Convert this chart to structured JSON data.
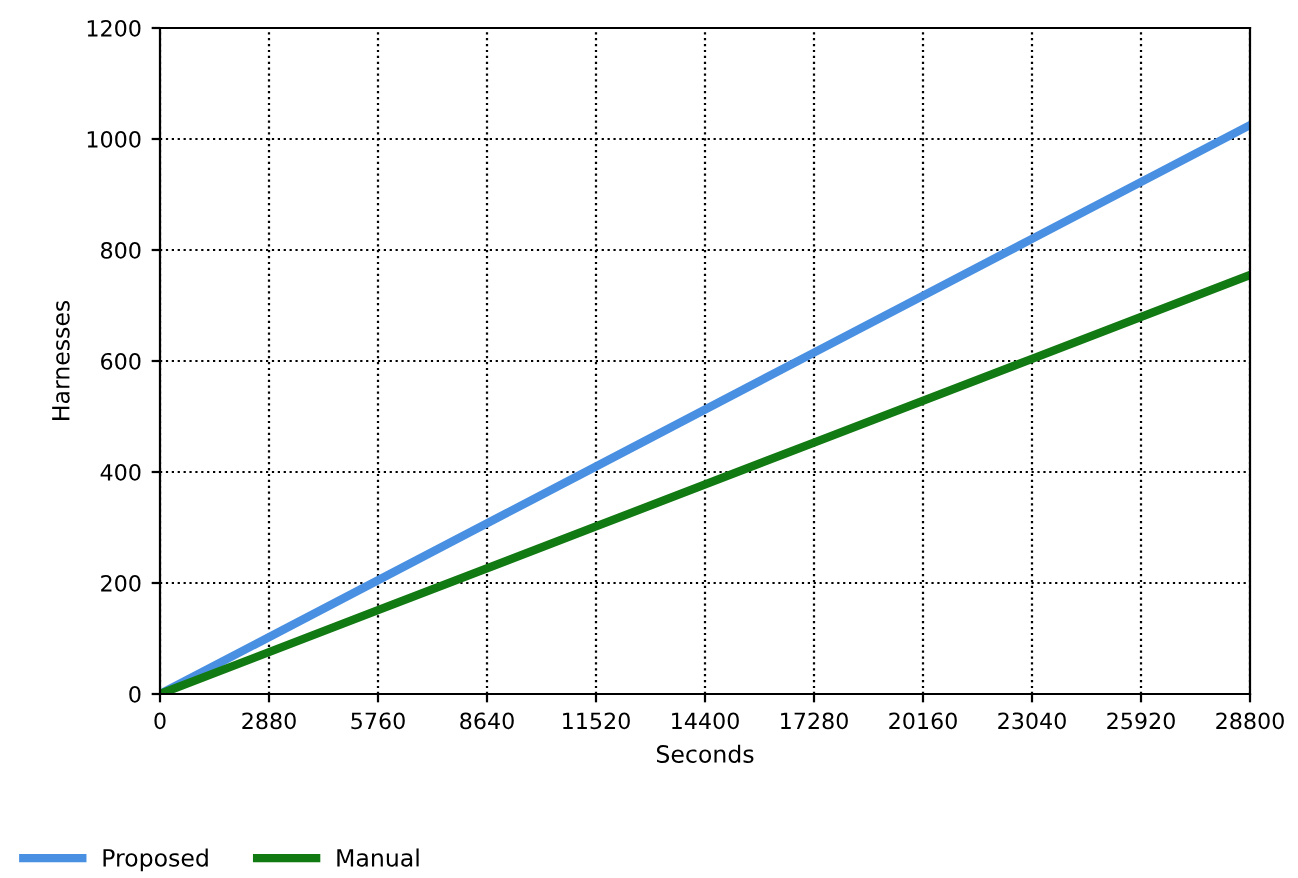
{
  "chart_data": {
    "type": "line",
    "xlabel": "Seconds",
    "ylabel": "Harnesses",
    "x": [
      0,
      5760,
      11520,
      17280,
      23040,
      28800
    ],
    "series": [
      {
        "name": "Proposed",
        "color": "#4a90e2",
        "values": [
          0,
          205,
          410,
          615,
          820,
          1025
        ]
      },
      {
        "name": "Manual",
        "color": "#127a12",
        "values": [
          0,
          151,
          302,
          453,
          604,
          755
        ]
      }
    ],
    "xlim": [
      0,
      28800
    ],
    "xticks": [
      0,
      2880,
      5760,
      8640,
      11520,
      14400,
      17280,
      20160,
      23040,
      25920,
      28800
    ],
    "ylim": [
      0,
      1200
    ],
    "yticks": [
      0,
      200,
      400,
      600,
      800,
      1000,
      1200
    ],
    "grid": true,
    "legend": "bottom left",
    "marker": "none",
    "line_style": "solid"
  }
}
